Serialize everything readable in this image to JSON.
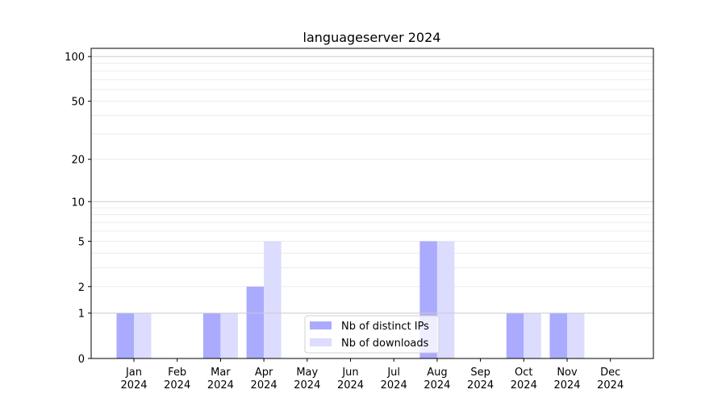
{
  "chart_data": {
    "type": "bar",
    "title": "languageserver 2024",
    "xlabel": "",
    "ylabel": "",
    "yscale": "symlog (log10(1+y))",
    "ylim": [
      0,
      114
    ],
    "yticks": [
      0,
      1,
      2,
      5,
      10,
      20,
      50,
      100
    ],
    "grid": true,
    "legend_position": "lower-center",
    "categories": [
      "Jan\n2024",
      "Feb\n2024",
      "Mar\n2024",
      "Apr\n2024",
      "May\n2024",
      "Jun\n2024",
      "Jul\n2024",
      "Aug\n2024",
      "Sep\n2024",
      "Oct\n2024",
      "Nov\n2024",
      "Dec\n2024"
    ],
    "series": [
      {
        "name": "Nb of distinct IPs",
        "color": "#aaaaff",
        "values": [
          1,
          0,
          1,
          2,
          0,
          0,
          0,
          5,
          0,
          1,
          1,
          0
        ]
      },
      {
        "name": "Nb of downloads",
        "color": "#dcdcff",
        "values": [
          1,
          0,
          1,
          5,
          0,
          0,
          0,
          5,
          0,
          1,
          1,
          0
        ]
      }
    ]
  }
}
